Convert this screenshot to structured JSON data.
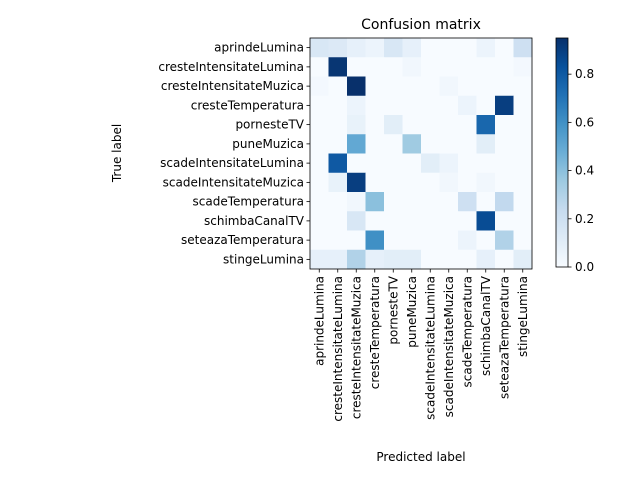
{
  "chart_data": {
    "type": "heatmap",
    "title": "Confusion matrix",
    "xlabel": "Predicted label",
    "ylabel": "True label",
    "x_categories": [
      "aprindeLumina",
      "cresteIntensitateLumina",
      "cresteIntensitateMuzica",
      "cresteTemperatura",
      "pornesteTV",
      "puneMuzica",
      "scadeIntensitateLumina",
      "scadeIntensitateMuzica",
      "scadeTemperatura",
      "schimbaCanalTV",
      "seteazaTemperatura",
      "stingeLumina"
    ],
    "y_categories": [
      "aprindeLumina",
      "cresteIntensitateLumina",
      "cresteIntensitateMuzica",
      "cresteTemperatura",
      "pornesteTV",
      "puneMuzica",
      "scadeIntensitateLumina",
      "scadeIntensitateMuzica",
      "scadeTemperatura",
      "schimbaCanalTV",
      "seteazaTemperatura",
      "stingeLumina"
    ],
    "values": [
      [
        0.15,
        0.13,
        0.08,
        0.05,
        0.15,
        0.08,
        0.0,
        0.0,
        0.0,
        0.05,
        0.0,
        0.2
      ],
      [
        0.0,
        0.93,
        0.0,
        0.0,
        0.0,
        0.03,
        0.0,
        0.0,
        0.0,
        0.0,
        0.0,
        0.02
      ],
      [
        0.02,
        0.0,
        0.95,
        0.0,
        0.0,
        0.0,
        0.0,
        0.03,
        0.0,
        0.0,
        0.0,
        0.0
      ],
      [
        0.0,
        0.0,
        0.05,
        0.0,
        0.0,
        0.0,
        0.0,
        0.0,
        0.05,
        0.0,
        0.9,
        0.0
      ],
      [
        0.0,
        0.0,
        0.07,
        0.0,
        0.1,
        0.0,
        0.0,
        0.0,
        0.0,
        0.75,
        0.0,
        0.0
      ],
      [
        0.0,
        0.0,
        0.5,
        0.0,
        0.0,
        0.35,
        0.0,
        0.0,
        0.0,
        0.1,
        0.0,
        0.0
      ],
      [
        0.0,
        0.8,
        0.0,
        0.0,
        0.0,
        0.0,
        0.1,
        0.05,
        0.0,
        0.0,
        0.0,
        0.0
      ],
      [
        0.0,
        0.07,
        0.9,
        0.0,
        0.0,
        0.0,
        0.0,
        0.03,
        0.0,
        0.03,
        0.0,
        0.0
      ],
      [
        0.0,
        0.0,
        0.03,
        0.4,
        0.0,
        0.0,
        0.0,
        0.0,
        0.2,
        0.0,
        0.25,
        0.0
      ],
      [
        0.0,
        0.0,
        0.15,
        0.0,
        0.0,
        0.0,
        0.0,
        0.0,
        0.0,
        0.85,
        0.0,
        0.0
      ],
      [
        0.0,
        0.0,
        0.0,
        0.6,
        0.0,
        0.0,
        0.0,
        0.0,
        0.05,
        0.0,
        0.3,
        0.0
      ],
      [
        0.08,
        0.08,
        0.3,
        0.08,
        0.1,
        0.1,
        0.0,
        0.0,
        0.0,
        0.08,
        0.0,
        0.1
      ]
    ],
    "colorbar": {
      "min": 0.0,
      "max": 0.95,
      "ticks": [
        0.0,
        0.2,
        0.4,
        0.6,
        0.8
      ],
      "tick_labels": [
        "0.0",
        "0.2",
        "0.4",
        "0.6",
        "0.8"
      ]
    },
    "colormap": [
      "#f7fbff",
      "#deebf7",
      "#c6dbef",
      "#9ecae1",
      "#6baed6",
      "#4292c6",
      "#2171b5",
      "#08519c",
      "#08306b"
    ],
    "grid": false,
    "legend": "colorbar-right"
  }
}
